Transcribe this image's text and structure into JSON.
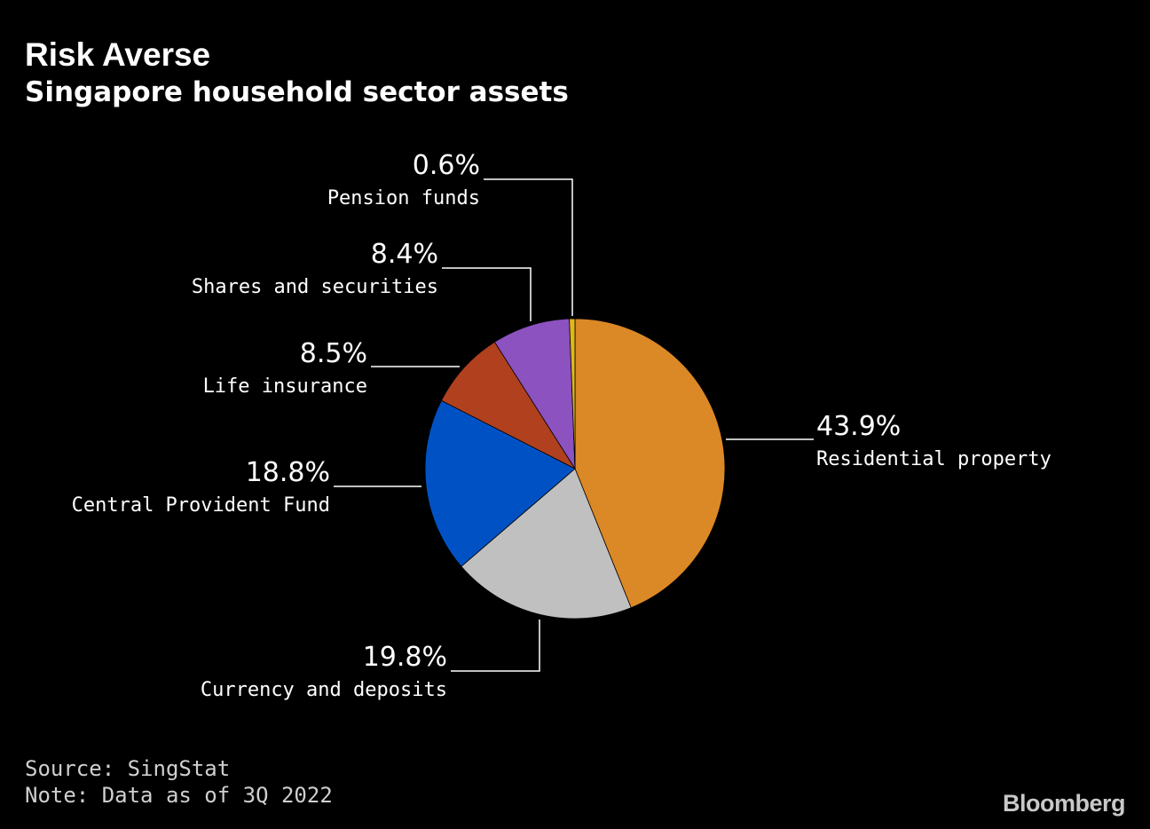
{
  "header": {
    "title": "Risk Averse",
    "subtitle": "Singapore household sector assets"
  },
  "footer": {
    "source": "Source: SingStat",
    "note": "Note: Data as of 3Q 2022",
    "brand": "Bloomberg"
  },
  "chart_data": {
    "type": "pie",
    "title": "Risk Averse",
    "subtitle": "Singapore household sector assets",
    "unit": "%",
    "start_angle_deg": 0,
    "direction": "clockwise",
    "slices": [
      {
        "label": "Residential property",
        "value": 43.9,
        "display": "43.9%",
        "color": "#db8826",
        "side": "right"
      },
      {
        "label": "Currency and deposits",
        "value": 19.8,
        "display": "19.8%",
        "color": "#c0c0c0",
        "side": "left"
      },
      {
        "label": "Central Provident Fund",
        "value": 18.8,
        "display": "18.8%",
        "color": "#0052c4",
        "side": "left"
      },
      {
        "label": "Life insurance",
        "value": 8.5,
        "display": "8.5%",
        "color": "#b0401e",
        "side": "left"
      },
      {
        "label": "Shares and securities",
        "value": 8.4,
        "display": "8.4%",
        "color": "#8c52bf",
        "side": "left"
      },
      {
        "label": "Pension funds",
        "value": 0.6,
        "display": "0.6%",
        "color": "#e0b818",
        "side": "left"
      }
    ]
  }
}
